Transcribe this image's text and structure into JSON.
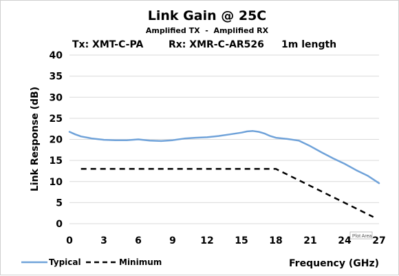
{
  "chart_data": {
    "type": "line",
    "title": "Link Gain @ 25C",
    "subtitle": "Amplified TX  -  Amplified RX",
    "subtitle2": {
      "tx": "Tx: XMT-C-PA",
      "rx": "Rx: XMR-C-AR526",
      "length": "1m length"
    },
    "xlabel": "Frequency (GHz)",
    "ylabel": "Link Response (dB)",
    "xlim": [
      0,
      27
    ],
    "ylim": [
      0,
      40
    ],
    "xticks": [
      "0",
      "3",
      "6",
      "9",
      "12",
      "15",
      "18",
      "21",
      "24",
      "27"
    ],
    "yticks": [
      "0",
      "5",
      "10",
      "15",
      "20",
      "25",
      "30",
      "35",
      "40"
    ],
    "grid": true,
    "legend_position": "bottom-left",
    "series": [
      {
        "name": "Typical",
        "color": "#6fa2d9",
        "style": "solid",
        "x": [
          0,
          0.5,
          1,
          2,
          3,
          4,
          5,
          6,
          7,
          8,
          9,
          10,
          11,
          12,
          13,
          14,
          15,
          15.5,
          16,
          16.5,
          17,
          17.5,
          18,
          19,
          20,
          21,
          22,
          23,
          24,
          25,
          26,
          27
        ],
        "y": [
          21.8,
          21.2,
          20.7,
          20.2,
          19.9,
          19.8,
          19.8,
          20.0,
          19.7,
          19.6,
          19.8,
          20.2,
          20.4,
          20.5,
          20.8,
          21.2,
          21.6,
          21.9,
          22.0,
          21.8,
          21.4,
          20.8,
          20.4,
          20.1,
          19.7,
          18.4,
          16.9,
          15.5,
          14.2,
          12.7,
          11.4,
          9.6
        ]
      },
      {
        "name": "Minimum",
        "color": "#000000",
        "style": "dashed",
        "x": [
          1,
          18,
          26.5
        ],
        "y": [
          13,
          13,
          1.6
        ]
      }
    ],
    "annotations": [
      "Plot Area"
    ]
  }
}
